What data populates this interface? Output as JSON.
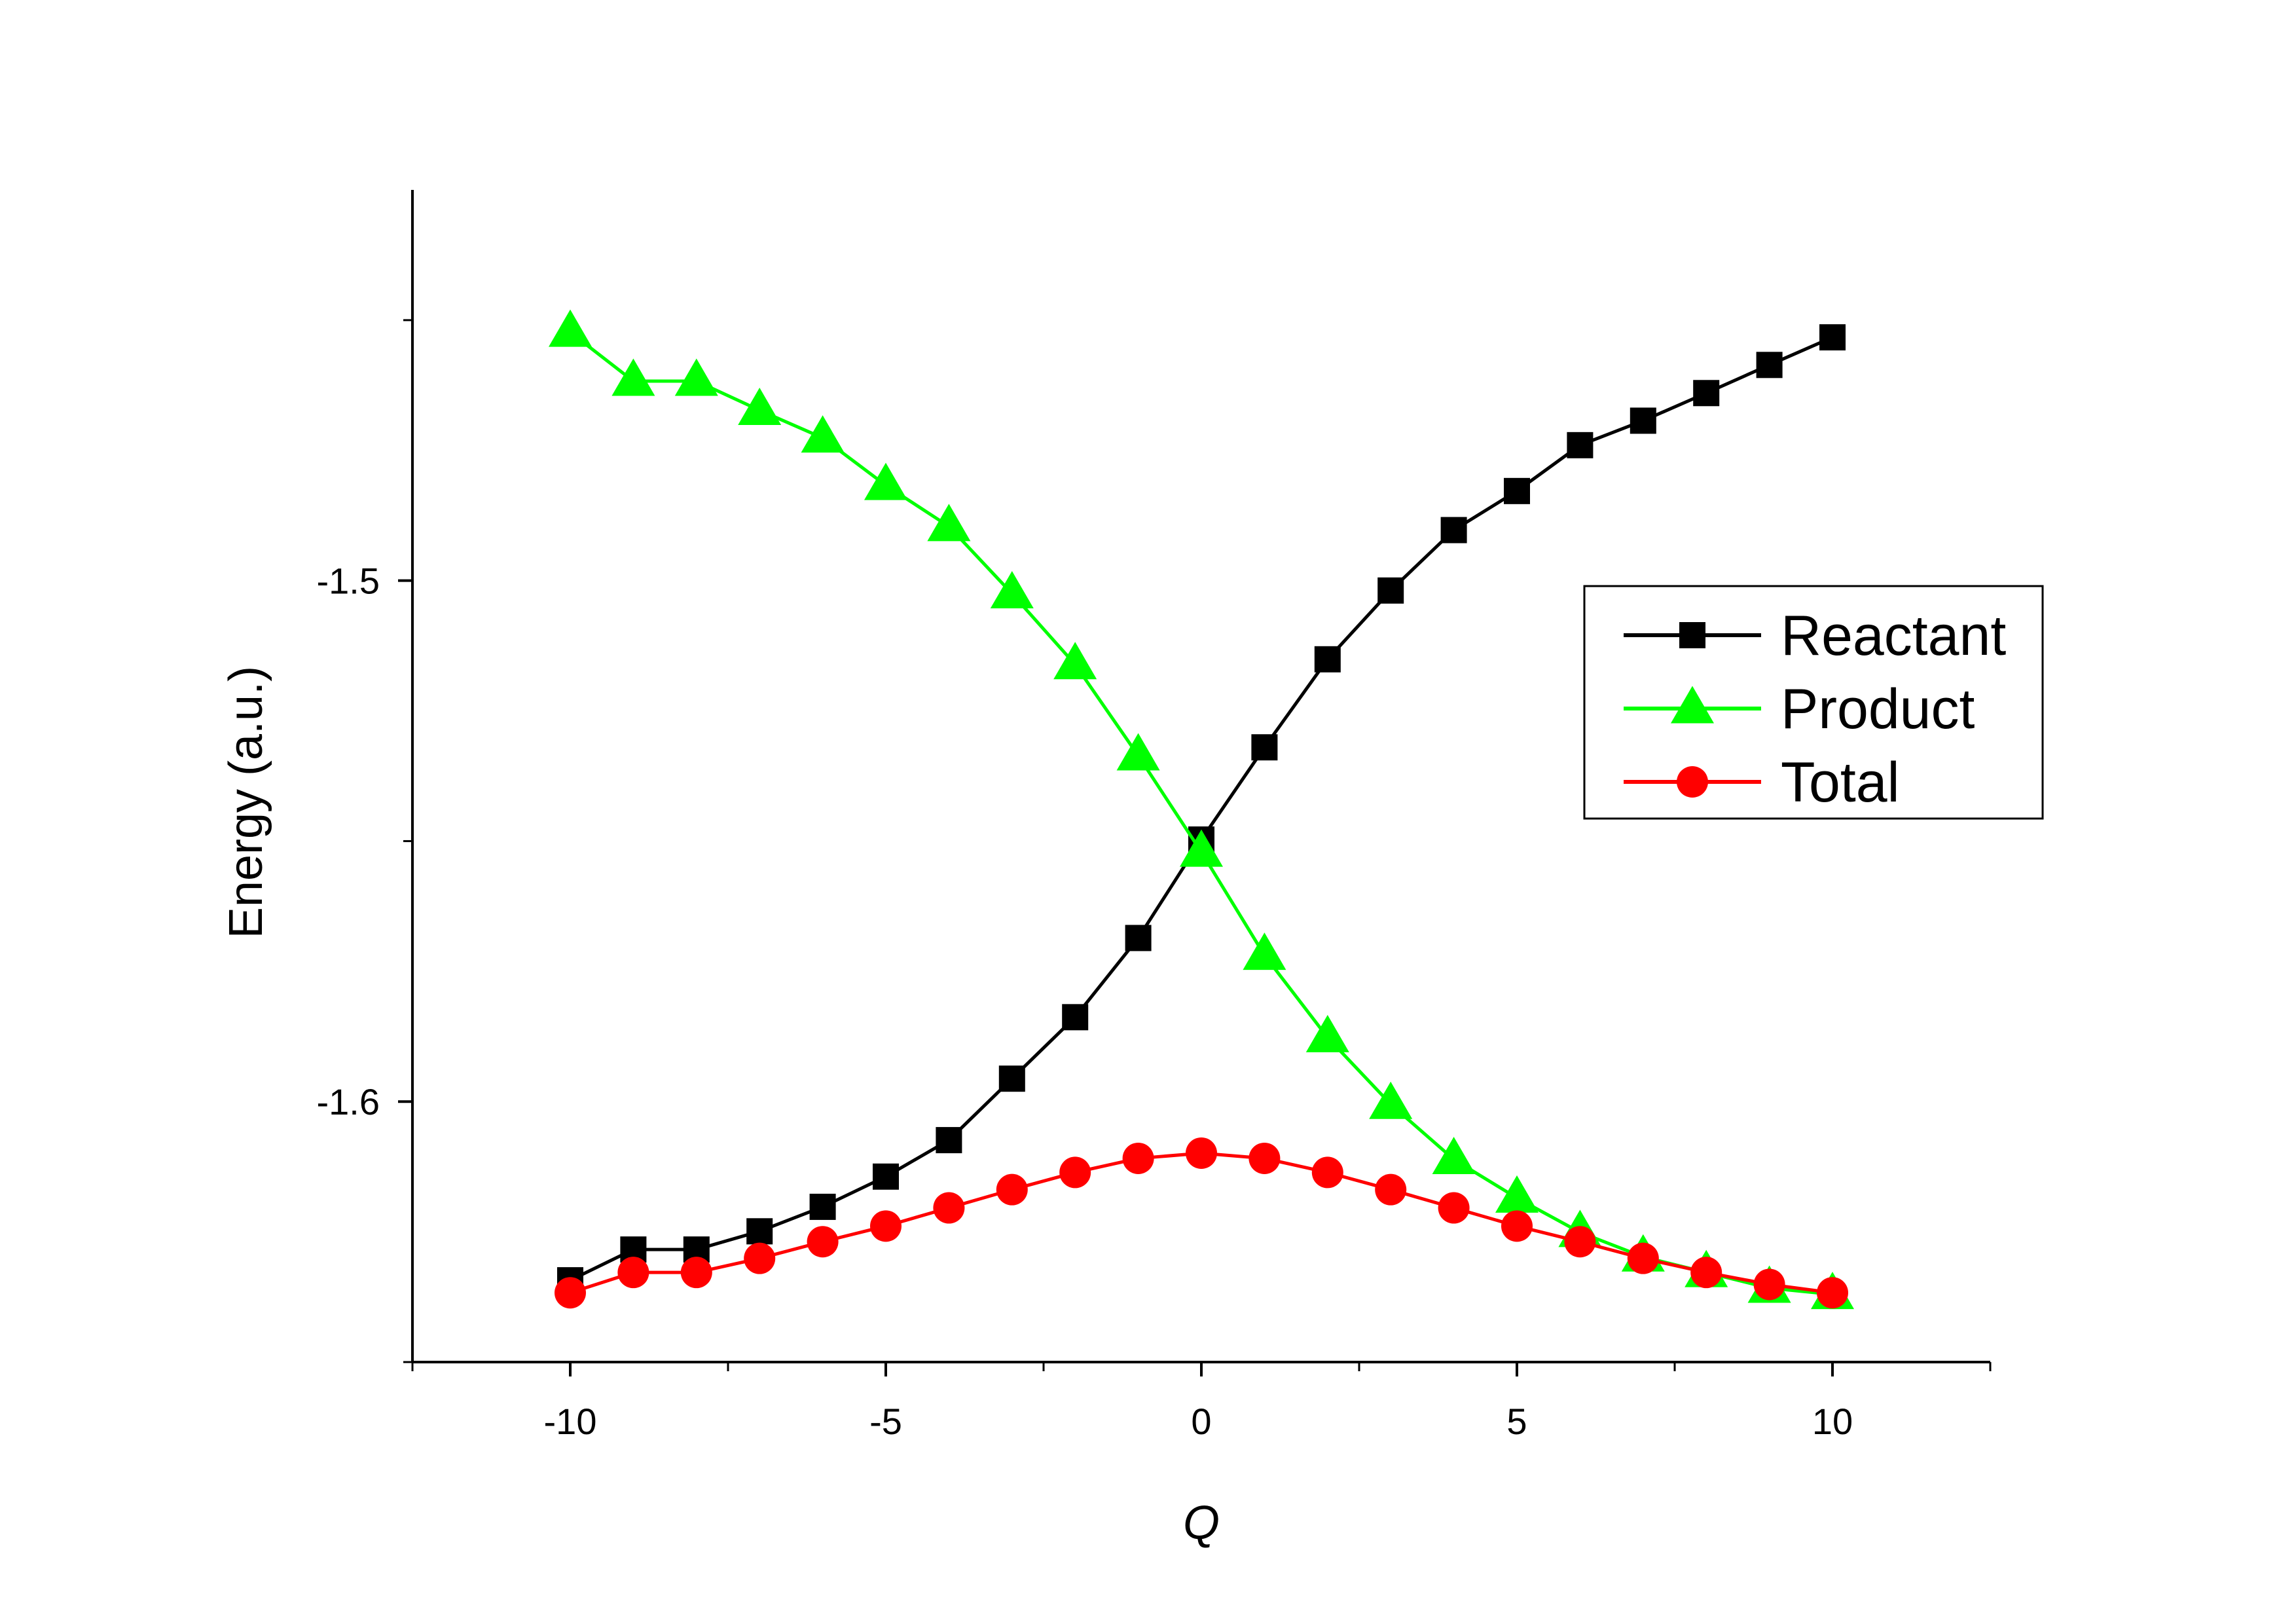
{
  "chart_data": {
    "type": "line",
    "title": "",
    "xlabel": "Q",
    "ylabel": "Energy (a.u.)",
    "xlim": [
      -12.5,
      12.5
    ],
    "ylim": [
      -1.65,
      -1.425
    ],
    "xticks": [
      -10,
      -5,
      0,
      5,
      10
    ],
    "xtick_labels": [
      "-10",
      "-5",
      "0",
      "5",
      "10"
    ],
    "yticks": [
      -1.6,
      -1.5
    ],
    "ytick_labels": [
      "-1.6",
      "-1.5"
    ],
    "x": [
      -10,
      -9,
      -8,
      -7,
      -6,
      -5,
      -4,
      -3,
      -2,
      -1,
      0,
      1,
      2,
      3,
      4,
      5,
      6,
      7,
      8,
      9,
      10
    ],
    "series": [
      {
        "name": "Reactant",
        "color": "#000000",
        "marker": "square",
        "values": [
          -1.6343,
          -1.6284,
          -1.6284,
          -1.6249,
          -1.6202,
          -1.6144,
          -1.6074,
          -1.5956,
          -1.5838,
          -1.5686,
          -1.5497,
          -1.532,
          -1.5151,
          -1.5019,
          -1.4903,
          -1.4828,
          -1.474,
          -1.4693,
          -1.464,
          -1.4586,
          -1.4533
        ]
      },
      {
        "name": "Product",
        "color": "#00ff00",
        "marker": "triangle",
        "values": [
          -1.4523,
          -1.4617,
          -1.4617,
          -1.4673,
          -1.4726,
          -1.4817,
          -1.4896,
          -1.5025,
          -1.5161,
          -1.5336,
          -1.5521,
          -1.5719,
          -1.5877,
          -1.6005,
          -1.6111,
          -1.6185,
          -1.6251,
          -1.6298,
          -1.6328,
          -1.6358,
          -1.637
        ]
      },
      {
        "name": "Total",
        "color": "#ff0000",
        "marker": "circle",
        "values": [
          -1.6367,
          -1.6328,
          -1.6328,
          -1.6301,
          -1.6269,
          -1.6239,
          -1.6204,
          -1.6169,
          -1.6136,
          -1.6109,
          -1.6099,
          -1.6109,
          -1.6136,
          -1.6169,
          -1.6204,
          -1.6239,
          -1.6269,
          -1.6301,
          -1.6328,
          -1.6351,
          -1.6367
        ]
      }
    ],
    "legend": {
      "position": "center-right",
      "entries": [
        "Reactant",
        "Product",
        "Total"
      ]
    },
    "grid": false
  }
}
